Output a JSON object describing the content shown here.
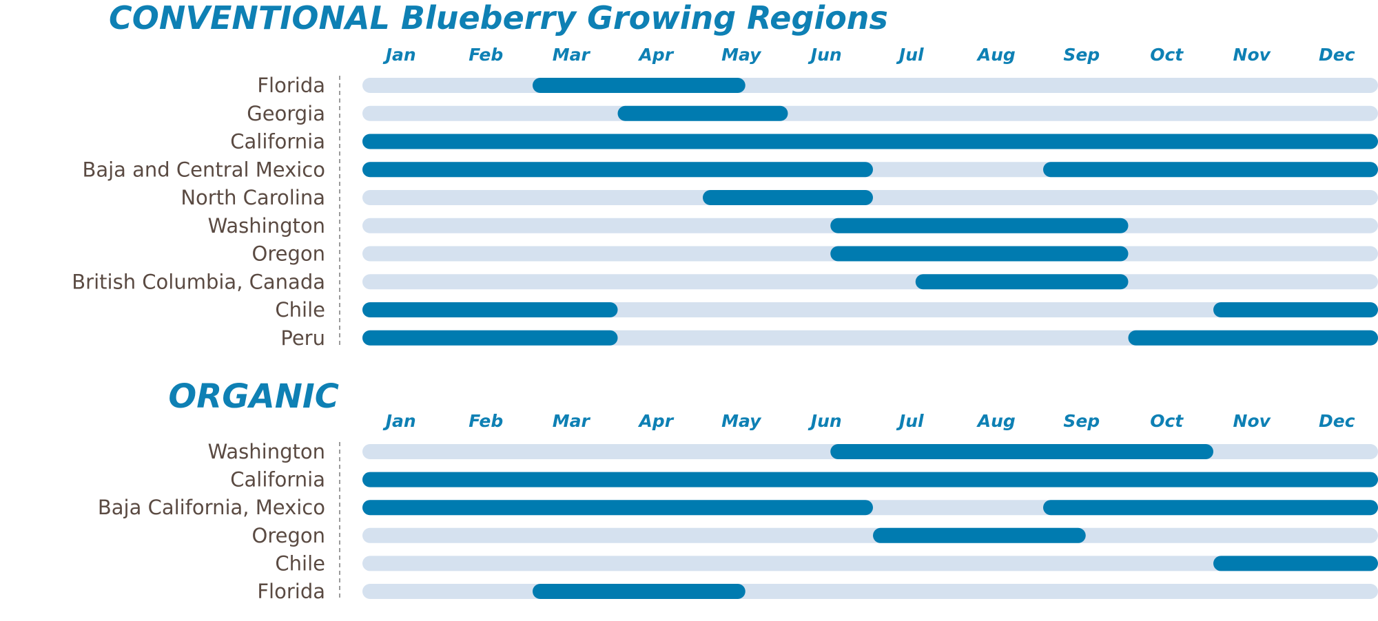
{
  "colors": {
    "title": "#0e80b4",
    "month": "#0e80b4",
    "label": "#5a4a42",
    "track": "#d5e1ef",
    "bar": "#007bb0",
    "divider": "#9a9a9a"
  },
  "chart_data": [
    {
      "type": "bar",
      "orientation": "horizontal-range",
      "title": "CONVENTIONAL Blueberry Growing Regions",
      "x_axis": {
        "ticks": [
          "Jan",
          "Feb",
          "Mar",
          "Apr",
          "May",
          "Jun",
          "Jul",
          "Aug",
          "Sep",
          "Oct",
          "Nov",
          "Dec"
        ],
        "range": [
          1,
          13
        ],
        "unit": "month"
      },
      "regions": [
        {
          "name": "Florida",
          "ranges": [
            [
              3.0,
              5.5
            ]
          ]
        },
        {
          "name": "Georgia",
          "ranges": [
            [
              4.0,
              6.0
            ]
          ]
        },
        {
          "name": "California",
          "ranges": [
            [
              1.0,
              13.0
            ]
          ]
        },
        {
          "name": "Baja and Central Mexico",
          "ranges": [
            [
              1.0,
              7.0
            ],
            [
              9.0,
              13.0
            ]
          ]
        },
        {
          "name": "North Carolina",
          "ranges": [
            [
              5.0,
              7.0
            ]
          ]
        },
        {
          "name": "Washington",
          "ranges": [
            [
              6.5,
              10.0
            ]
          ]
        },
        {
          "name": "Oregon",
          "ranges": [
            [
              6.5,
              10.0
            ]
          ]
        },
        {
          "name": "British Columbia, Canada",
          "ranges": [
            [
              7.5,
              10.0
            ]
          ]
        },
        {
          "name": "Chile",
          "ranges": [
            [
              1.0,
              4.0
            ],
            [
              11.0,
              13.0
            ]
          ]
        },
        {
          "name": "Peru",
          "ranges": [
            [
              1.0,
              4.0
            ],
            [
              10.0,
              13.0
            ]
          ]
        }
      ]
    },
    {
      "type": "bar",
      "orientation": "horizontal-range",
      "title": "ORGANIC",
      "x_axis": {
        "ticks": [
          "Jan",
          "Feb",
          "Mar",
          "Apr",
          "May",
          "Jun",
          "Jul",
          "Aug",
          "Sep",
          "Oct",
          "Nov",
          "Dec"
        ],
        "range": [
          1,
          13
        ],
        "unit": "month"
      },
      "regions": [
        {
          "name": "Washington",
          "ranges": [
            [
              6.5,
              11.0
            ]
          ]
        },
        {
          "name": "California",
          "ranges": [
            [
              1.0,
              13.0
            ]
          ]
        },
        {
          "name": "Baja California, Mexico",
          "ranges": [
            [
              1.0,
              7.0
            ],
            [
              9.0,
              13.0
            ]
          ]
        },
        {
          "name": "Oregon",
          "ranges": [
            [
              7.0,
              9.5
            ]
          ]
        },
        {
          "name": "Chile",
          "ranges": [
            [
              11.0,
              13.0
            ]
          ]
        },
        {
          "name": "Florida",
          "ranges": [
            [
              3.0,
              5.5
            ]
          ]
        }
      ]
    }
  ]
}
